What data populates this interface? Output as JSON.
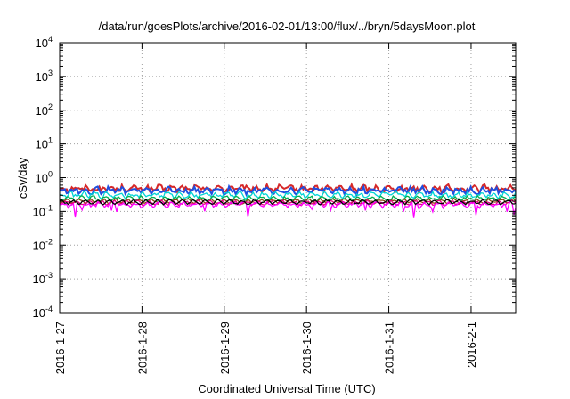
{
  "chart_data": {
    "type": "line",
    "title": "/data/run/goesPlots/archive/2016-02-01/13:00/flux/../bryn/5daysMoon.plot",
    "xlabel": "Coordinated Universal Time (UTC)",
    "ylabel": "cSv/day",
    "yscale": "log",
    "ylim": [
      0.0001,
      10000
    ],
    "y_ticks": [
      {
        "base": "10",
        "exp": "-4"
      },
      {
        "base": "10",
        "exp": "-3"
      },
      {
        "base": "10",
        "exp": "-2"
      },
      {
        "base": "10",
        "exp": "-1"
      },
      {
        "base": "10",
        "exp": "0"
      },
      {
        "base": "10",
        "exp": "1"
      },
      {
        "base": "10",
        "exp": "2"
      },
      {
        "base": "10",
        "exp": "3"
      },
      {
        "base": "10",
        "exp": "4"
      }
    ],
    "xlim": [
      "2016-01-27 00:00",
      "2016-02-01 13:00"
    ],
    "x_ticks": [
      "2016-1-27",
      "2016-1-28",
      "2016-1-29",
      "2016-1-30",
      "2016-1-31",
      "2016-2-1"
    ],
    "grid": true,
    "legend": "none",
    "series": [
      {
        "color": "#d62728",
        "level": 0.48,
        "variation": 0.18
      },
      {
        "color": "#1f4fe0",
        "level": 0.42,
        "variation": 0.18
      },
      {
        "color": "#00d4d4",
        "level": 0.31,
        "variation": 0.14
      },
      {
        "color": "#00b050",
        "level": 0.24,
        "variation": 0.1
      },
      {
        "color": "#8b4513",
        "level": 0.2,
        "variation": 0.08
      },
      {
        "color": "#e6007e",
        "level": 0.18,
        "variation": 0.08
      },
      {
        "color": "#ff00ff",
        "level": 0.16,
        "variation": 0.12
      },
      {
        "color": "#000000",
        "level": 0.19,
        "variation": 0.07
      }
    ]
  }
}
